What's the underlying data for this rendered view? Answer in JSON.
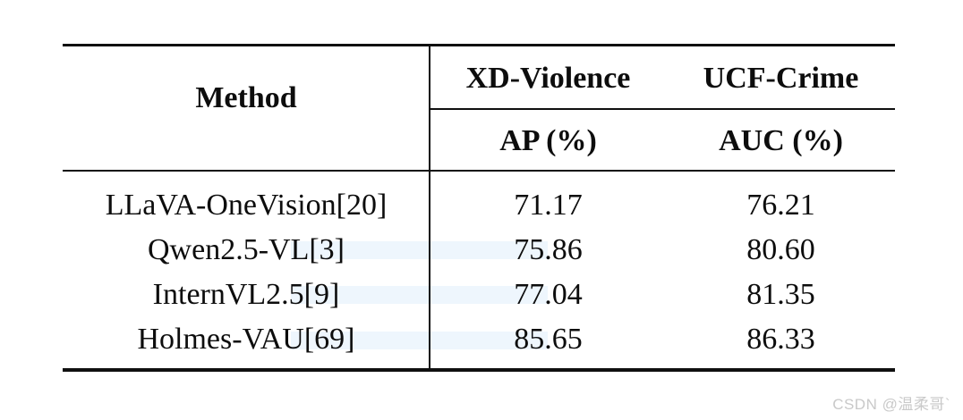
{
  "table": {
    "title_semantic": "VLM anomaly-detection benchmark comparison table",
    "method_header": "Method",
    "groups": [
      {
        "label": "XD-Violence",
        "sub_label": "AP (%)"
      },
      {
        "label": "UCF-Crime",
        "sub_label": "AUC (%)"
      }
    ],
    "rows": [
      {
        "method": "LLaVA-OneVision[20]",
        "ap": "71.17",
        "auc": "76.21"
      },
      {
        "method": "Qwen2.5-VL[3]",
        "ap": "75.86",
        "auc": "80.60"
      },
      {
        "method": "InternVL2.5[9]",
        "ap": "77.04",
        "auc": "81.35"
      },
      {
        "method": "Holmes-VAU[69]",
        "ap": "85.65",
        "auc": "86.33"
      }
    ]
  },
  "watermark": {
    "text": "CSDN @温柔哥`"
  },
  "colors": {
    "background": "#ffffff",
    "rule": "#101010",
    "text": "#0d0d0d",
    "row_highlight": "#eef6fd",
    "watermark": "#c9c9c9"
  }
}
